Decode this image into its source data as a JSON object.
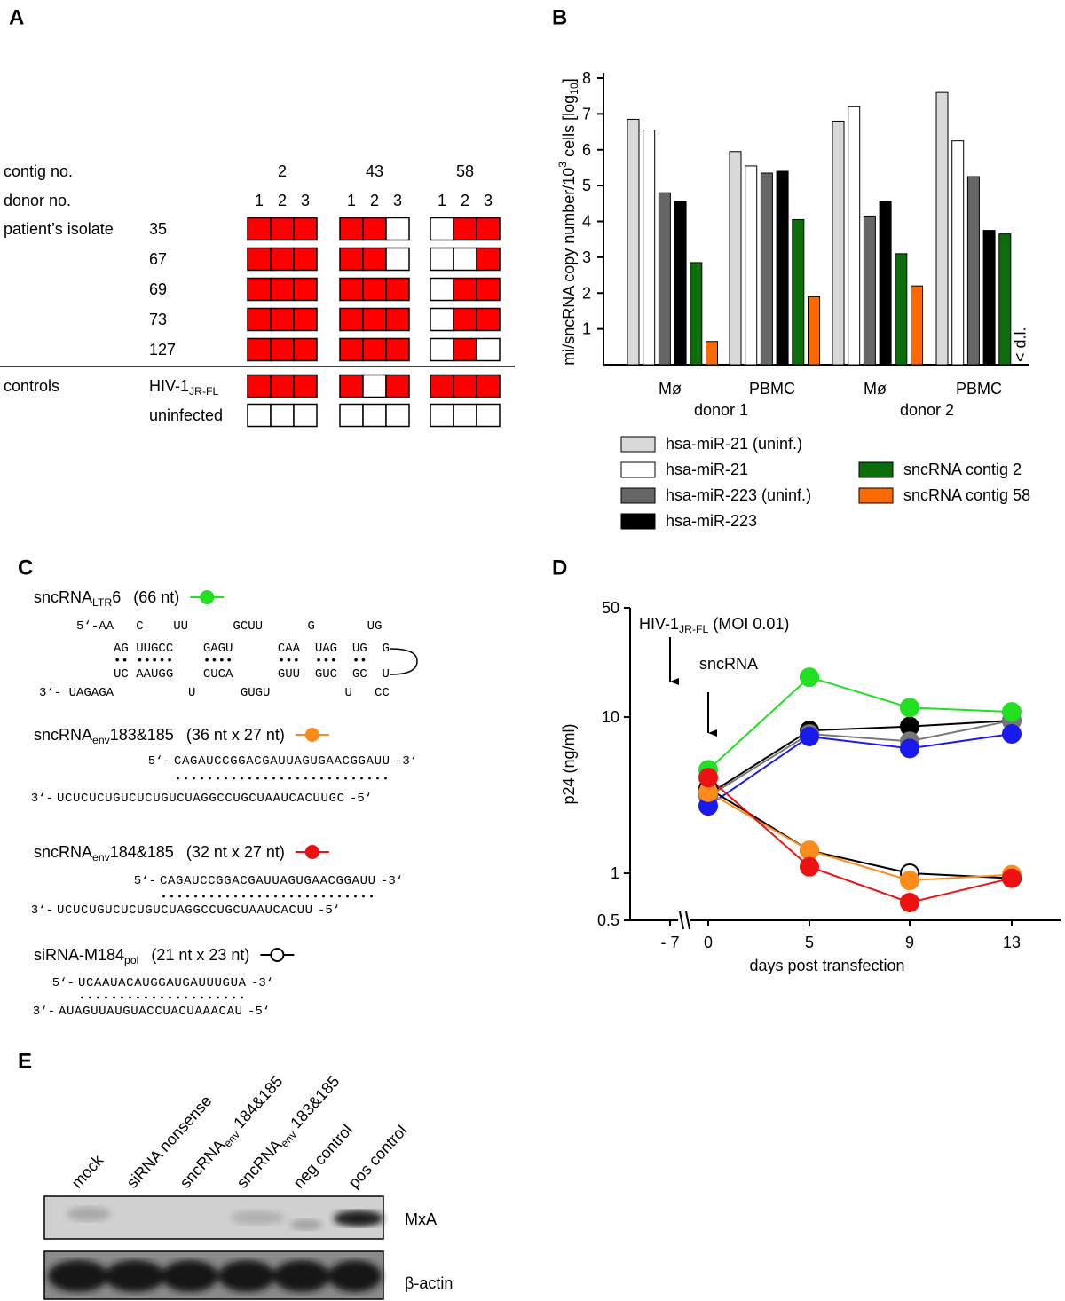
{
  "panel_a": {
    "label": "A",
    "contig_header": "contig no.",
    "donor_header": "donor no.",
    "contigs": [
      "2",
      "43",
      "58"
    ],
    "donors": [
      "1",
      "2",
      "3"
    ],
    "positive_color": "#ff0000",
    "groups": [
      {
        "name": "patient’s isolate",
        "rows": [
          {
            "name": "35",
            "cells": [
              [
                1,
                1,
                1
              ],
              [
                1,
                1,
                0
              ],
              [
                0,
                1,
                1
              ]
            ]
          },
          {
            "name": "67",
            "cells": [
              [
                1,
                1,
                1
              ],
              [
                1,
                1,
                0
              ],
              [
                0,
                0,
                1
              ]
            ]
          },
          {
            "name": "69",
            "cells": [
              [
                1,
                1,
                1
              ],
              [
                1,
                1,
                1
              ],
              [
                0,
                1,
                1
              ]
            ]
          },
          {
            "name": "73",
            "cells": [
              [
                1,
                1,
                1
              ],
              [
                1,
                1,
                1
              ],
              [
                0,
                1,
                1
              ]
            ]
          },
          {
            "name": "127",
            "cells": [
              [
                1,
                1,
                1
              ],
              [
                1,
                1,
                1
              ],
              [
                0,
                1,
                0
              ]
            ]
          }
        ]
      },
      {
        "name": "controls",
        "rows": [
          {
            "name": "HIV-1",
            "name_sub": "JR-FL",
            "cells": [
              [
                1,
                1,
                1
              ],
              [
                1,
                0,
                1
              ],
              [
                1,
                1,
                1
              ]
            ]
          },
          {
            "name": "uninfected",
            "cells": [
              [
                0,
                0,
                0
              ],
              [
                0,
                0,
                0
              ],
              [
                0,
                0,
                0
              ]
            ]
          }
        ]
      }
    ]
  },
  "chart_data": [
    {
      "type": "bar",
      "label": "B",
      "y_label": [
        "mi/sncRNA copy number/10",
        "3",
        " cells [log",
        "10",
        "]"
      ],
      "groups": [
        {
          "name": "donor 1",
          "categories": [
            "Mø",
            "PBMC"
          ]
        },
        {
          "name": "donor 2",
          "categories": [
            "Mø",
            "PBMC"
          ]
        }
      ],
      "ylim": [
        0,
        8
      ],
      "yticks": [
        1,
        2,
        3,
        4,
        5,
        6,
        7,
        8
      ],
      "annotation": "< d.l.",
      "series": [
        {
          "name": "hsa-miR-21 (uninf.)",
          "color": "#d9d9d9",
          "values": [
            6.85,
            5.95,
            6.8,
            7.6
          ]
        },
        {
          "name": "hsa-miR-21",
          "color": "#ffffff",
          "values": [
            6.55,
            5.55,
            7.2,
            6.25
          ]
        },
        {
          "name": "hsa-miR-223 (uninf.)",
          "color": "#666666",
          "values": [
            4.8,
            5.35,
            4.15,
            5.25
          ]
        },
        {
          "name": "hsa-miR-223",
          "color": "#000000",
          "values": [
            4.55,
            5.4,
            4.55,
            3.75
          ]
        },
        {
          "name": "sncRNA contig 2",
          "color": "#0b6e0b",
          "values": [
            2.85,
            4.05,
            3.1,
            3.65
          ]
        },
        {
          "name": "sncRNA contig 58",
          "color": "#ff6a00",
          "values": [
            0.65,
            1.9,
            2.2,
            null
          ]
        }
      ]
    },
    {
      "type": "line",
      "label": "D",
      "log_y": true,
      "categories": [
        "0",
        "5",
        "9",
        "13"
      ],
      "pre_tick": "- 7",
      "ylim": [
        0.5,
        50
      ],
      "yticks": [
        0.5,
        1,
        10,
        50
      ],
      "y_label": "p24 (ng/ml)",
      "x_label": "days post transfection",
      "infection_note": [
        "HIV-1",
        "JR-FL",
        " (MOI 0.01)"
      ],
      "treatment_note": "sncRNA",
      "series": [
        {
          "color": "#000000",
          "values": [
            3.2,
            8.2,
            8.7,
            9.5
          ]
        },
        {
          "color": "#777777",
          "values": [
            3.1,
            7.8,
            7.0,
            9.5
          ]
        },
        {
          "color": "#1a1aee",
          "values": [
            2.7,
            7.5,
            6.3,
            7.8
          ]
        },
        {
          "color": "#22e022",
          "values": [
            4.6,
            18,
            11.5,
            10.8
          ]
        },
        {
          "color": "#000000",
          "fill": "#ffffff",
          "values": [
            3.5,
            1.4,
            1.0,
            0.93
          ]
        },
        {
          "color": "#ff8c1a",
          "values": [
            3.3,
            1.4,
            0.9,
            0.98
          ]
        },
        {
          "color": "#ee1111",
          "values": [
            4.1,
            1.1,
            0.65,
            0.93
          ]
        }
      ]
    }
  ],
  "panel_c": {
    "label": "C",
    "primes": [
      "5‘-",
      "-3‘",
      "3‘-",
      "-5‘"
    ],
    "entries": [
      {
        "name": "sncRNA",
        "sub": "LTR",
        "name_end": "6",
        "length": "(66 nt)",
        "color": "#22e022",
        "structure": [
          "     5‘-AA   C    UU      GCUU      G       UG",
          "          AG UUGCC    GAGU      CAA  UAG  UG  G",
          "          •• •••••    ••••      •••  •••  ••",
          "          UC AAUGG    CUCA      GUU  GUC  GC  U",
          "3‘- UAGAGA          U      GUGU          U   CC"
        ]
      },
      {
        "name": "sncRNA",
        "sub": "env",
        "name_end": "183&185",
        "length": "(36 nt x 27 nt)",
        "color": "#ff8c1a",
        "top": "CAGAUCCGGACGAUUAGUGAACGGAUU",
        "bottom": "UCUCUCUGUCUCUGUCUAGGCCUGCUAAUCACUUGC"
      },
      {
        "name": "sncRNA",
        "sub": "env",
        "name_end": "184&185",
        "length": "(32 nt x 27 nt)",
        "color": "#ee1111",
        "top": "CAGAUCCGGACGAUUAGUGAACGGAUU",
        "bottom": "UCUCUGUCUCUGUCUAGGCCUGCUAAUCACUU"
      },
      {
        "name": "siRNA-M184",
        "sub": "pol",
        "length": "(21 nt x 23 nt)",
        "color": "#000000",
        "fill": "#ffffff",
        "top": "UCAAUACAUGGAUGAUUUGUA",
        "bottom": "AUAGUUAUGUACCUACUAAACAU"
      }
    ]
  },
  "panel_e": {
    "label": "E",
    "lanes": [
      {
        "name": "mock"
      },
      {
        "name": "siRNA nonsense"
      },
      {
        "name": "sncRNA",
        "sub": "env",
        "name_end": " 184&185"
      },
      {
        "name": "sncRNA",
        "sub": "env",
        "name_end": " 183&185"
      },
      {
        "name": "neg control"
      },
      {
        "name": "pos control"
      }
    ],
    "rows": [
      "MxA",
      "β-actin"
    ]
  }
}
